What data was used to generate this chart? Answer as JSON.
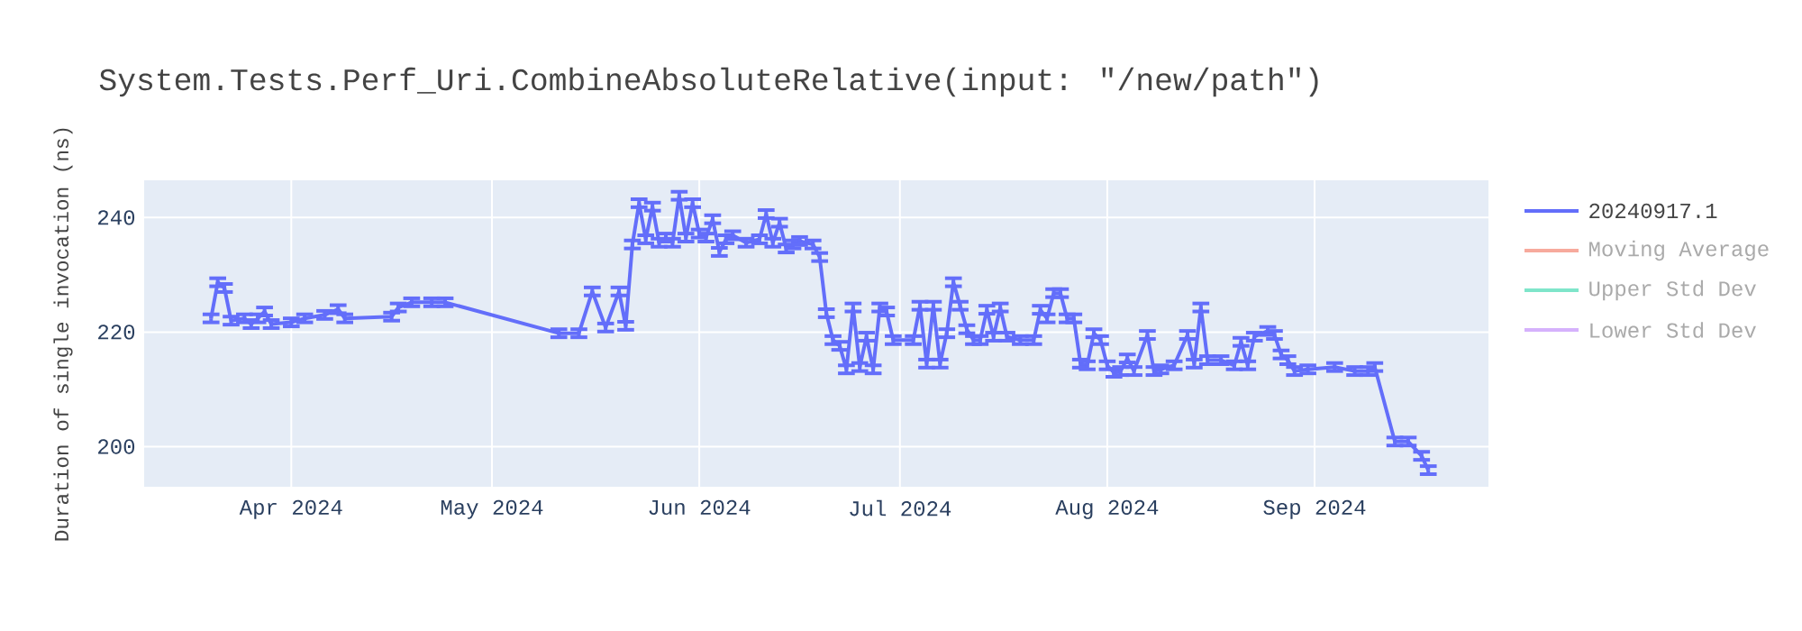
{
  "chart_data": {
    "type": "line",
    "title": "System.Tests.Perf_Uri.CombineAbsoluteRelative(input: \"/new/path\")",
    "ylabel": "Duration of single invocation (ns)",
    "x": [
      "2024-03-20",
      "2024-03-21",
      "2024-03-22",
      "2024-03-23",
      "2024-03-25",
      "2024-03-26",
      "2024-03-27",
      "2024-03-28",
      "2024-03-29",
      "2024-04-01",
      "2024-04-03",
      "2024-04-06",
      "2024-04-08",
      "2024-04-09",
      "2024-04-16",
      "2024-04-17",
      "2024-04-19",
      "2024-04-22",
      "2024-04-24",
      "2024-05-11",
      "2024-05-14",
      "2024-05-16",
      "2024-05-18",
      "2024-05-20",
      "2024-05-21",
      "2024-05-22",
      "2024-05-23",
      "2024-05-24",
      "2024-05-25",
      "2024-05-26",
      "2024-05-27",
      "2024-05-28",
      "2024-05-29",
      "2024-05-30",
      "2024-05-31",
      "2024-06-01",
      "2024-06-02",
      "2024-06-03",
      "2024-06-04",
      "2024-06-05",
      "2024-06-06",
      "2024-06-08",
      "2024-06-10",
      "2024-06-11",
      "2024-06-12",
      "2024-06-13",
      "2024-06-14",
      "2024-06-15",
      "2024-06-16",
      "2024-06-18",
      "2024-06-19",
      "2024-06-20",
      "2024-06-21",
      "2024-06-22",
      "2024-06-23",
      "2024-06-24",
      "2024-06-25",
      "2024-06-26",
      "2024-06-27",
      "2024-06-28",
      "2024-06-29",
      "2024-06-30",
      "2024-07-03",
      "2024-07-04",
      "2024-07-05",
      "2024-07-06",
      "2024-07-07",
      "2024-07-08",
      "2024-07-09",
      "2024-07-10",
      "2024-07-11",
      "2024-07-12",
      "2024-07-13",
      "2024-07-14",
      "2024-07-15",
      "2024-07-16",
      "2024-07-17",
      "2024-07-19",
      "2024-07-21",
      "2024-07-22",
      "2024-07-23",
      "2024-07-24",
      "2024-07-25",
      "2024-07-26",
      "2024-07-27",
      "2024-07-28",
      "2024-07-29",
      "2024-07-30",
      "2024-07-31",
      "2024-08-01",
      "2024-08-02",
      "2024-08-03",
      "2024-08-04",
      "2024-08-05",
      "2024-08-07",
      "2024-08-08",
      "2024-08-09",
      "2024-08-11",
      "2024-08-13",
      "2024-08-14",
      "2024-08-15",
      "2024-08-16",
      "2024-08-18",
      "2024-08-20",
      "2024-08-21",
      "2024-08-22",
      "2024-08-23",
      "2024-08-25",
      "2024-08-26",
      "2024-08-27",
      "2024-08-28",
      "2024-08-29",
      "2024-08-31",
      "2024-09-04",
      "2024-09-07",
      "2024-09-09",
      "2024-09-10",
      "2024-09-13",
      "2024-09-15",
      "2024-09-17",
      "2024-09-18"
    ],
    "series": [
      {
        "name": "20240917.1",
        "color": "#636efa",
        "values": [
          222.4,
          228.7,
          227.7,
          222.0,
          222.4,
          221.4,
          222.4,
          223.6,
          221.4,
          221.7,
          222.4,
          223.0,
          224.0,
          222.4,
          222.7,
          224.3,
          225.2,
          225.2,
          225.2,
          219.8,
          219.8,
          227.1,
          220.8,
          227.1,
          221.1,
          235.3,
          242.5,
          236.2,
          241.9,
          235.6,
          236.5,
          235.6,
          243.8,
          236.5,
          242.5,
          237.2,
          236.5,
          239.7,
          234.0,
          236.2,
          236.9,
          235.6,
          236.2,
          240.6,
          235.6,
          239.1,
          234.6,
          235.3,
          235.9,
          235.3,
          233.1,
          223.3,
          218.6,
          217.6,
          213.5,
          224.3,
          213.9,
          219.2,
          213.5,
          224.3,
          223.6,
          218.6,
          218.6,
          224.6,
          214.5,
          224.6,
          214.5,
          219.8,
          228.7,
          224.6,
          220.5,
          218.6,
          218.6,
          223.9,
          219.2,
          224.3,
          219.2,
          218.6,
          218.6,
          223.9,
          222.4,
          226.8,
          226.8,
          222.4,
          222.4,
          214.5,
          214.2,
          219.8,
          218.6,
          214.2,
          212.9,
          213.2,
          215.4,
          213.2,
          219.5,
          213.2,
          213.5,
          214.2,
          219.5,
          214.5,
          224.3,
          215.1,
          215.1,
          214.2,
          218.3,
          214.2,
          219.2,
          220.2,
          219.5,
          216.1,
          215.1,
          213.2,
          213.5,
          213.9,
          213.2,
          213.2,
          213.9,
          200.9,
          200.9,
          198.4,
          195.9
        ],
        "errors": [
          0.7,
          0.7,
          0.7,
          0.7,
          0.7,
          0.7,
          0.7,
          0.7,
          0.7,
          0.7,
          0.7,
          0.7,
          0.7,
          0.7,
          0.7,
          0.7,
          0.7,
          0.7,
          0.7,
          0.7,
          0.7,
          0.7,
          0.7,
          0.7,
          0.7,
          0.7,
          0.7,
          0.7,
          0.7,
          0.7,
          0.7,
          0.7,
          0.7,
          0.7,
          0.7,
          0.7,
          0.7,
          0.7,
          0.7,
          0.7,
          0.7,
          0.7,
          0.7,
          0.7,
          0.7,
          0.7,
          0.7,
          0.7,
          0.7,
          0.7,
          0.7,
          0.7,
          0.7,
          0.7,
          0.7,
          0.7,
          0.7,
          0.7,
          0.7,
          0.7,
          0.7,
          0.7,
          0.7,
          0.7,
          0.7,
          0.7,
          0.7,
          0.7,
          0.7,
          0.7,
          0.7,
          0.7,
          0.7,
          0.7,
          0.7,
          0.7,
          0.7,
          0.7,
          0.7,
          0.7,
          0.7,
          0.7,
          0.7,
          0.7,
          0.7,
          0.7,
          0.7,
          0.7,
          0.7,
          0.7,
          0.7,
          0.7,
          0.7,
          0.7,
          0.7,
          0.7,
          0.7,
          0.7,
          0.7,
          0.7,
          0.7,
          0.7,
          0.7,
          0.7,
          0.7,
          0.7,
          0.7,
          0.7,
          0.7,
          0.7,
          0.7,
          0.7,
          0.7,
          0.7,
          0.7,
          0.7,
          0.7,
          0.7,
          0.7,
          0.7,
          0.7
        ]
      },
      {
        "name": "Moving Average",
        "color": "#f7aa9d",
        "values": [
          null,
          null,
          null,
          null,
          null,
          null,
          null,
          null,
          null,
          null,
          null,
          null,
          null,
          null,
          null,
          null,
          null,
          null,
          null,
          null,
          null,
          null,
          null,
          null,
          null,
          null,
          null,
          null,
          null,
          null,
          null,
          null,
          null,
          null,
          null,
          null,
          null,
          null,
          null,
          null,
          null,
          null,
          null,
          null,
          null,
          null,
          null,
          null,
          null,
          null,
          null,
          null,
          null,
          null,
          null,
          null,
          null,
          null,
          null,
          null,
          null,
          null,
          null,
          null,
          null,
          null,
          null,
          null,
          null,
          null,
          null,
          null,
          null,
          null,
          null,
          null,
          null,
          null,
          null,
          null,
          null,
          null,
          null,
          null,
          null,
          null,
          null,
          null,
          null,
          null,
          null,
          null,
          null,
          null,
          null,
          null,
          null,
          null,
          null,
          null,
          null,
          null,
          null,
          null,
          null,
          null,
          null,
          null,
          null,
          null,
          null,
          null,
          null,
          null,
          null,
          null,
          null,
          null,
          null,
          null,
          null
        ]
      },
      {
        "name": "Upper Std Dev",
        "color": "#7fe5ca",
        "values": [
          null,
          null,
          null,
          null,
          null,
          null,
          null,
          null,
          null,
          null,
          null,
          null,
          null,
          null,
          null,
          null,
          null,
          null,
          null,
          null,
          null,
          null,
          null,
          null,
          null,
          null,
          null,
          null,
          null,
          null,
          null,
          null,
          null,
          null,
          null,
          null,
          null,
          null,
          null,
          null,
          null,
          null,
          null,
          null,
          null,
          null,
          null,
          null,
          null,
          null,
          null,
          null,
          null,
          null,
          null,
          null,
          null,
          null,
          null,
          null,
          null,
          null,
          null,
          null,
          null,
          null,
          null,
          null,
          null,
          null,
          null,
          null,
          null,
          null,
          null,
          null,
          null,
          null,
          null,
          null,
          null,
          null,
          null,
          null,
          null,
          null,
          null,
          null,
          null,
          null,
          null,
          null,
          null,
          null,
          null,
          null,
          null,
          null,
          null,
          null,
          null,
          null,
          null,
          null,
          null,
          null,
          null,
          null,
          null,
          null,
          null,
          null,
          null,
          null,
          null,
          null,
          null,
          null,
          null,
          null,
          null
        ]
      },
      {
        "name": "Lower Std Dev",
        "color": "#d5b1fc",
        "values": [
          null,
          null,
          null,
          null,
          null,
          null,
          null,
          null,
          null,
          null,
          null,
          null,
          null,
          null,
          null,
          null,
          null,
          null,
          null,
          null,
          null,
          null,
          null,
          null,
          null,
          null,
          null,
          null,
          null,
          null,
          null,
          null,
          null,
          null,
          null,
          null,
          null,
          null,
          null,
          null,
          null,
          null,
          null,
          null,
          null,
          null,
          null,
          null,
          null,
          null,
          null,
          null,
          null,
          null,
          null,
          null,
          null,
          null,
          null,
          null,
          null,
          null,
          null,
          null,
          null,
          null,
          null,
          null,
          null,
          null,
          null,
          null,
          null,
          null,
          null,
          null,
          null,
          null,
          null,
          null,
          null,
          null,
          null,
          null,
          null,
          null,
          null,
          null,
          null,
          null,
          null,
          null,
          null,
          null,
          null,
          null,
          null,
          null,
          null,
          null,
          null,
          null,
          null,
          null,
          null,
          null,
          null,
          null,
          null,
          null,
          null,
          null,
          null,
          null,
          null,
          null,
          null,
          null,
          null,
          null,
          null
        ]
      }
    ],
    "xlim": [
      "2024-03-10",
      "2024-09-27"
    ],
    "xticks": [
      {
        "value": "2024-04-01",
        "label": "Apr 2024"
      },
      {
        "value": "2024-05-01",
        "label": "May 2024"
      },
      {
        "value": "2024-06-01",
        "label": "Jun 2024"
      },
      {
        "value": "2024-07-01",
        "label": "Jul 2024"
      },
      {
        "value": "2024-08-01",
        "label": "Aug 2024"
      },
      {
        "value": "2024-09-01",
        "label": "Sep 2024"
      }
    ],
    "ylim": [
      193,
      246.5
    ],
    "yticks": [
      200,
      220,
      240
    ],
    "grid": true,
    "legend": "right",
    "marker": "none",
    "line_style": "solid"
  }
}
